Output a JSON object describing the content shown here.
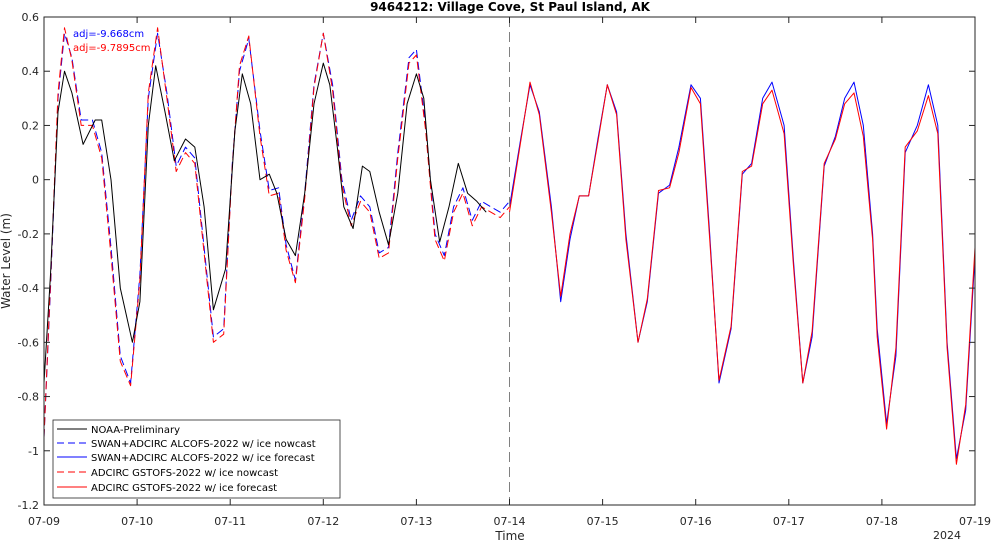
{
  "chart_data": {
    "type": "line",
    "title": "9464212: Village Cove, St Paul Island, AK",
    "xlabel": "Time",
    "ylabel": "Water Level (m)",
    "xlim": [
      "07-09",
      "07-19"
    ],
    "ylim": [
      -1.2,
      0.6
    ],
    "x_ticks": [
      "07-09",
      "07-10",
      "07-11",
      "07-12",
      "07-13",
      "07-14",
      "07-15",
      "07-16",
      "07-17",
      "07-18",
      "07-19"
    ],
    "x_year_label": "2024",
    "y_ticks": [
      0.6,
      0.4,
      0.2,
      0,
      -0.2,
      -0.4,
      -0.6,
      -0.8,
      -1,
      -1.2
    ],
    "y_tick_labels": [
      "0.6",
      "0.4",
      "0.2",
      "0",
      "-0.2",
      "-0.4",
      "-0.6",
      "-0.8",
      "-1",
      "-1.2"
    ],
    "grid": false,
    "legend_position": "bottom-left",
    "nowcast_forecast_divider": "07-14",
    "annotations": [
      {
        "text": "adj=-9.668cm",
        "color": "#0000ff"
      },
      {
        "text": "adj=-9.7895cm",
        "color": "#ff0000"
      }
    ],
    "series": [
      {
        "name": "NOAA-Preliminary",
        "color": "#000000",
        "style": "solid",
        "x": [
          0,
          0.07,
          0.15,
          0.22,
          0.3,
          0.42,
          0.55,
          0.62,
          0.72,
          0.82,
          0.95,
          1.03,
          1.12,
          1.2,
          1.3,
          1.4,
          1.52,
          1.62,
          1.72,
          1.82,
          1.95,
          2.05,
          2.13,
          2.22,
          2.32,
          2.42,
          2.5,
          2.6,
          2.7,
          2.8,
          2.9,
          3.0,
          3.07,
          3.15,
          3.22,
          3.32,
          3.42,
          3.5,
          3.6,
          3.7,
          3.8,
          3.9,
          4.0,
          4.08,
          4.15,
          4.25,
          4.35,
          4.45,
          4.55,
          4.65,
          4.75
        ],
        "y": [
          -0.75,
          -0.35,
          0.25,
          0.4,
          0.32,
          0.13,
          0.22,
          0.22,
          0.0,
          -0.4,
          -0.6,
          -0.45,
          0.2,
          0.42,
          0.25,
          0.07,
          0.15,
          0.12,
          -0.1,
          -0.48,
          -0.33,
          0.18,
          0.39,
          0.28,
          0.0,
          0.02,
          -0.05,
          -0.22,
          -0.28,
          -0.05,
          0.28,
          0.43,
          0.35,
          0.12,
          -0.1,
          -0.18,
          0.05,
          0.03,
          -0.12,
          -0.24,
          -0.05,
          0.28,
          0.39,
          0.3,
          0.0,
          -0.23,
          -0.1,
          0.06,
          -0.05,
          -0.08,
          -0.12
        ]
      },
      {
        "name": "SWAN+ADCIRC ALCOFS-2022 w/ ice nowcast",
        "color": "#0000ff",
        "style": "dashed",
        "x": [
          0,
          0.07,
          0.15,
          0.22,
          0.3,
          0.4,
          0.52,
          0.62,
          0.72,
          0.82,
          0.93,
          1.03,
          1.12,
          1.22,
          1.32,
          1.42,
          1.52,
          1.62,
          1.72,
          1.82,
          1.93,
          2.02,
          2.1,
          2.2,
          2.32,
          2.42,
          2.52,
          2.6,
          2.7,
          2.8,
          2.9,
          3.0,
          3.1,
          3.2,
          3.3,
          3.4,
          3.5,
          3.6,
          3.7,
          3.8,
          3.92,
          4.0,
          4.1,
          4.2,
          4.3,
          4.4,
          4.5,
          4.6,
          4.7,
          4.8,
          4.9,
          5.0
        ],
        "y": [
          -0.95,
          -0.4,
          0.3,
          0.54,
          0.45,
          0.22,
          0.22,
          0.1,
          -0.25,
          -0.65,
          -0.75,
          -0.35,
          0.3,
          0.54,
          0.32,
          0.05,
          0.12,
          0.08,
          -0.25,
          -0.58,
          -0.55,
          0.05,
          0.4,
          0.52,
          0.18,
          -0.04,
          -0.03,
          -0.24,
          -0.37,
          -0.05,
          0.35,
          0.54,
          0.35,
          0.0,
          -0.15,
          -0.06,
          -0.1,
          -0.27,
          -0.25,
          0.1,
          0.45,
          0.48,
          0.2,
          -0.2,
          -0.28,
          -0.1,
          -0.03,
          -0.15,
          -0.08,
          -0.1,
          -0.12,
          -0.08
        ]
      },
      {
        "name": "SWAN+ADCIRC ALCOFS-2022 w/ ice forecast",
        "color": "#0000ff",
        "style": "solid",
        "x": [
          5.0,
          5.12,
          5.22,
          5.32,
          5.45,
          5.55,
          5.65,
          5.75,
          5.85,
          5.95,
          6.05,
          6.15,
          6.25,
          6.38,
          6.48,
          6.6,
          6.72,
          6.82,
          6.95,
          7.05,
          7.15,
          7.25,
          7.38,
          7.5,
          7.6,
          7.72,
          7.82,
          7.95,
          8.05,
          8.15,
          8.25,
          8.38,
          8.5,
          8.6,
          8.7,
          8.8,
          8.9,
          8.95,
          9.05,
          9.15,
          9.25,
          9.38,
          9.5,
          9.6,
          9.7,
          9.8,
          9.9,
          10.0
        ],
        "y": [
          -0.1,
          0.15,
          0.35,
          0.25,
          -0.1,
          -0.45,
          -0.22,
          -0.06,
          -0.06,
          0.15,
          0.35,
          0.25,
          -0.2,
          -0.6,
          -0.45,
          -0.05,
          -0.02,
          0.12,
          0.35,
          0.3,
          -0.2,
          -0.75,
          -0.55,
          0.02,
          0.06,
          0.3,
          0.36,
          0.2,
          -0.3,
          -0.75,
          -0.58,
          0.05,
          0.16,
          0.3,
          0.36,
          0.2,
          -0.2,
          -0.55,
          -0.9,
          -0.65,
          0.1,
          0.2,
          0.35,
          0.2,
          -0.6,
          -1.03,
          -0.85,
          -0.28
        ]
      },
      {
        "name": "ADCIRC GSTOFS-2022 w/ ice nowcast",
        "color": "#ff0000",
        "style": "dashed",
        "x": [
          0,
          0.07,
          0.15,
          0.22,
          0.3,
          0.4,
          0.52,
          0.62,
          0.72,
          0.82,
          0.93,
          1.03,
          1.12,
          1.22,
          1.32,
          1.42,
          1.52,
          1.62,
          1.72,
          1.82,
          1.93,
          2.02,
          2.1,
          2.2,
          2.32,
          2.42,
          2.52,
          2.6,
          2.7,
          2.8,
          2.9,
          3.0,
          3.1,
          3.2,
          3.3,
          3.4,
          3.5,
          3.6,
          3.7,
          3.8,
          3.92,
          4.0,
          4.1,
          4.2,
          4.3,
          4.4,
          4.5,
          4.6,
          4.7,
          4.8,
          4.9,
          5.0
        ],
        "y": [
          -0.95,
          -0.38,
          0.32,
          0.56,
          0.44,
          0.2,
          0.2,
          0.08,
          -0.28,
          -0.67,
          -0.76,
          -0.37,
          0.32,
          0.56,
          0.3,
          0.03,
          0.1,
          0.06,
          -0.27,
          -0.6,
          -0.57,
          0.04,
          0.42,
          0.53,
          0.16,
          -0.06,
          -0.05,
          -0.26,
          -0.38,
          -0.07,
          0.34,
          0.54,
          0.33,
          -0.02,
          -0.17,
          -0.08,
          -0.12,
          -0.29,
          -0.27,
          0.08,
          0.43,
          0.46,
          0.18,
          -0.22,
          -0.3,
          -0.12,
          -0.05,
          -0.17,
          -0.1,
          -0.12,
          -0.14,
          -0.1
        ]
      },
      {
        "name": "ADCIRC GSTOFS-2022 w/ ice forecast",
        "color": "#ff0000",
        "style": "solid",
        "x": [
          5.0,
          5.12,
          5.22,
          5.32,
          5.45,
          5.55,
          5.65,
          5.75,
          5.85,
          5.95,
          6.05,
          6.15,
          6.25,
          6.38,
          6.48,
          6.6,
          6.72,
          6.82,
          6.95,
          7.05,
          7.15,
          7.25,
          7.38,
          7.5,
          7.6,
          7.72,
          7.82,
          7.95,
          8.05,
          8.15,
          8.25,
          8.38,
          8.5,
          8.6,
          8.7,
          8.8,
          8.9,
          8.95,
          9.05,
          9.15,
          9.25,
          9.38,
          9.5,
          9.6,
          9.7,
          9.8,
          9.9,
          10.0
        ],
        "y": [
          -0.12,
          0.14,
          0.36,
          0.24,
          -0.12,
          -0.43,
          -0.2,
          -0.06,
          -0.06,
          0.14,
          0.35,
          0.24,
          -0.22,
          -0.6,
          -0.44,
          -0.04,
          -0.03,
          0.1,
          0.34,
          0.28,
          -0.22,
          -0.74,
          -0.54,
          0.03,
          0.05,
          0.28,
          0.33,
          0.17,
          -0.32,
          -0.75,
          -0.56,
          0.06,
          0.15,
          0.28,
          0.32,
          0.16,
          -0.22,
          -0.58,
          -0.92,
          -0.62,
          0.12,
          0.18,
          0.31,
          0.17,
          -0.62,
          -1.05,
          -0.83,
          -0.25
        ]
      }
    ]
  }
}
